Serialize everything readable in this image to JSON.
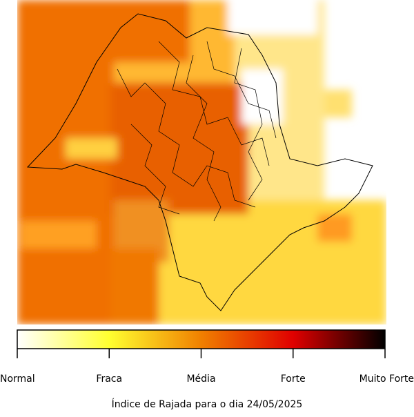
{
  "map": {
    "region": "São Paulo"
  },
  "colorbar": {
    "labels": [
      "Normal",
      "Fraca",
      "Média",
      "Forte",
      "Muito Forte"
    ],
    "colors": [
      "#ffffff",
      "#ffff30",
      "#f08000",
      "#e00000",
      "#000000"
    ]
  },
  "caption": "Índice de Rajada para o dia 24/05/2025"
}
